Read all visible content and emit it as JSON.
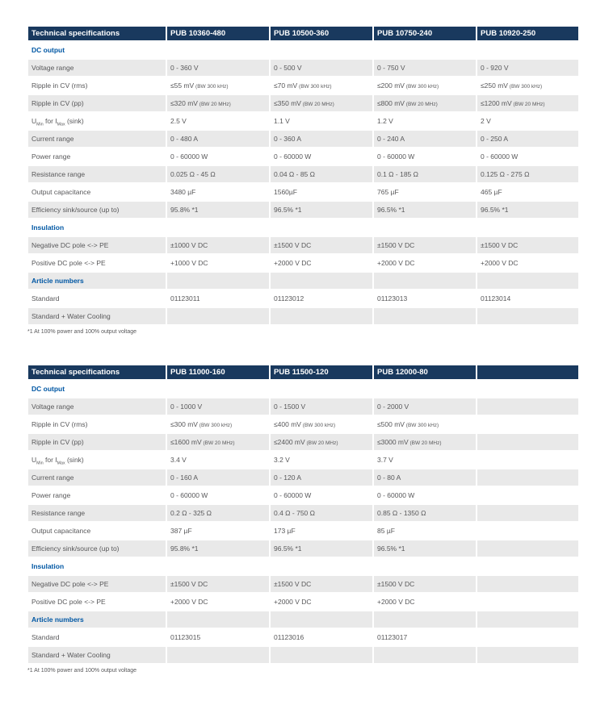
{
  "colors": {
    "page_bg": "#FFFFFF",
    "header_bg": "#19395E",
    "header_text": "#FFFFFF",
    "section_text": "#0057A4",
    "row_alt_bg": "#E9E9E9",
    "body_text": "#58585A"
  },
  "tables": [
    {
      "header": [
        "Technical specifications",
        "PUB 10360-480",
        "PUB 10500-360",
        "PUB 10750-240",
        "PUB 10920-250"
      ],
      "sections": [
        {
          "title": "DC output",
          "rows": [
            {
              "label": "Voltage range",
              "values": [
                "0 - 360 V",
                "0 - 500 V",
                "0 - 750 V",
                "0 - 920 V"
              ]
            },
            {
              "label": "Ripple in CV (rms)",
              "values": [
                {
                  "main": "≤55 mV",
                  "note": "(BW 300 kHz)"
                },
                {
                  "main": "≤70 mV",
                  "note": "(BW 300 kHz)"
                },
                {
                  "main": "≤200 mV",
                  "note": "(BW 300 kHz)"
                },
                {
                  "main": "≤250 mV",
                  "note": "(BW 300 kHz)"
                }
              ]
            },
            {
              "label": "Ripple in CV (pp)",
              "values": [
                {
                  "main": "≤320 mV",
                  "note": "(BW 20 MHz)"
                },
                {
                  "main": "≤350 mV",
                  "note": "(BW 20 MHz)"
                },
                {
                  "main": "≤800 mV",
                  "note": "(BW 20 MHz)"
                },
                {
                  "main": "≤1200 mV",
                  "note": "(BW 20 MHz)"
                }
              ]
            },
            {
              "label": "U~Min~ for I~Max~ (sink)",
              "values": [
                "2.5 V",
                "1.1 V",
                "1.2 V",
                "2 V"
              ]
            },
            {
              "label": "Current range",
              "values": [
                "0 - 480 A",
                "0 - 360 A",
                "0 - 240 A",
                "0 - 250 A"
              ]
            },
            {
              "label": "Power range",
              "values": [
                "0 - 60000 W",
                "0 - 60000 W",
                "0 - 60000 W",
                "0 - 60000 W"
              ]
            },
            {
              "label": "Resistance range",
              "values": [
                "0.025 Ω - 45 Ω",
                "0.04 Ω - 85 Ω",
                "0.1 Ω - 185 Ω",
                "0.125 Ω - 275 Ω"
              ]
            },
            {
              "label": "Output capacitance",
              "values": [
                "3480 µF",
                "1560µF",
                "765 µF",
                "465 µF"
              ]
            },
            {
              "label": "Efficiency sink/source (up to)",
              "values": [
                "95.8% *1",
                "96.5% *1",
                "96.5% *1",
                "96.5% *1"
              ]
            }
          ]
        },
        {
          "title": "Insulation",
          "rows": [
            {
              "label": "Negative DC pole <-> PE",
              "values": [
                "±1000 V DC",
                "±1500 V DC",
                "±1500 V DC",
                "±1500 V DC"
              ]
            },
            {
              "label": "Positive DC pole <-> PE",
              "values": [
                "+1000 V DC",
                "+2000 V DC",
                "+2000 V DC",
                "+2000 V DC"
              ]
            }
          ]
        },
        {
          "title": "Article numbers",
          "rows": [
            {
              "label": "Standard",
              "values": [
                "01123011",
                "01123012",
                "01123013",
                "01123014"
              ]
            },
            {
              "label": "Standard + Water Cooling",
              "values": [
                "",
                "",
                "",
                ""
              ]
            }
          ]
        }
      ],
      "footnote": "*1 At 100% power and 100% output voltage"
    },
    {
      "header": [
        "Technical specifications",
        "PUB 11000-160",
        "PUB 11500-120",
        "PUB 12000-80",
        ""
      ],
      "sections": [
        {
          "title": "DC output",
          "rows": [
            {
              "label": "Voltage range",
              "values": [
                "0 - 1000 V",
                "0 - 1500 V",
                "0 - 2000 V",
                ""
              ]
            },
            {
              "label": "Ripple in CV (rms)",
              "values": [
                {
                  "main": "≤300 mV",
                  "note": "(BW 300 kHz)"
                },
                {
                  "main": "≤400 mV",
                  "note": "(BW 300 kHz)"
                },
                {
                  "main": "≤500 mV",
                  "note": "(BW 300 kHz)"
                },
                ""
              ]
            },
            {
              "label": "Ripple in CV (pp)",
              "values": [
                {
                  "main": "≤1600 mV",
                  "note": "(BW 20 MHz)"
                },
                {
                  "main": "≤2400 mV",
                  "note": "(BW 20 MHz)"
                },
                {
                  "main": "≤3000 mV",
                  "note": "(BW 20 MHz)"
                },
                ""
              ]
            },
            {
              "label": "U~Min~ for I~Max~ (sink)",
              "values": [
                "3.4 V",
                "3.2 V",
                "3.7 V",
                ""
              ]
            },
            {
              "label": "Current range",
              "values": [
                "0 - 160 A",
                "0 - 120 A",
                "0 - 80 A",
                ""
              ]
            },
            {
              "label": "Power range",
              "values": [
                "0 - 60000 W",
                "0 - 60000 W",
                "0 - 60000 W",
                ""
              ]
            },
            {
              "label": "Resistance range",
              "values": [
                "0.2 Ω - 325 Ω",
                "0.4 Ω - 750 Ω",
                "0.85 Ω - 1350 Ω",
                ""
              ]
            },
            {
              "label": "Output capacitance",
              "values": [
                "387 µF",
                "173 µF",
                "85 µF",
                ""
              ]
            },
            {
              "label": "Efficiency sink/source (up to)",
              "values": [
                "95.8% *1",
                "96.5% *1",
                "96.5% *1",
                ""
              ]
            }
          ]
        },
        {
          "title": "Insulation",
          "rows": [
            {
              "label": "Negative DC pole <-> PE",
              "values": [
                "±1500 V DC",
                "±1500 V DC",
                "±1500 V DC",
                ""
              ]
            },
            {
              "label": "Positive DC pole <-> PE",
              "values": [
                "+2000 V DC",
                "+2000 V DC",
                "+2000 V DC",
                ""
              ]
            }
          ]
        },
        {
          "title": "Article numbers",
          "rows": [
            {
              "label": "Standard",
              "values": [
                "01123015",
                "01123016",
                "01123017",
                ""
              ]
            },
            {
              "label": "Standard + Water Cooling",
              "values": [
                "",
                "",
                "",
                ""
              ]
            }
          ]
        }
      ],
      "footnote": "*1 At 100% power and 100% output voltage"
    }
  ]
}
